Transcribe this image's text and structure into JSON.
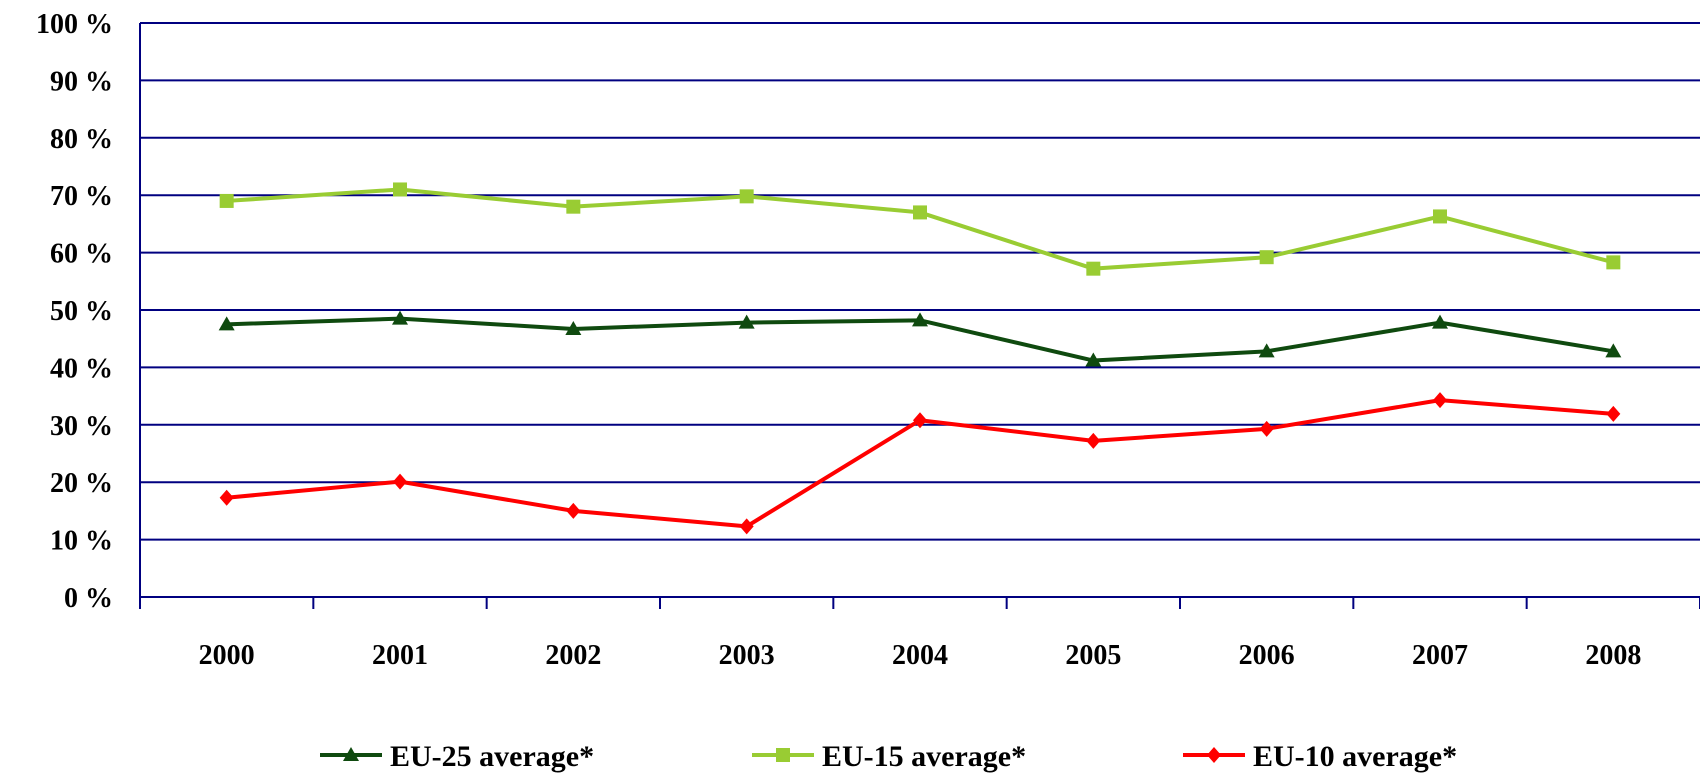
{
  "chart_data": {
    "type": "line",
    "categories": [
      "2000",
      "2001",
      "2002",
      "2003",
      "2004",
      "2005",
      "2006",
      "2007",
      "2008"
    ],
    "y_tick_labels": [
      "0 %",
      "10 %",
      "20 %",
      "30 %",
      "40 %",
      "50 %",
      "60 %",
      "70 %",
      "80 %",
      "90 %",
      "100 %"
    ],
    "ylim": [
      0,
      100
    ],
    "grid": true,
    "legend_position": "bottom",
    "series": [
      {
        "name": "EU-25 average*",
        "color": "#0f4a0f",
        "marker": "triangle",
        "values": [
          47.5,
          48.5,
          46.7,
          47.8,
          48.2,
          41.2,
          42.8,
          47.8,
          42.8
        ]
      },
      {
        "name": "EU-15 average*",
        "color": "#99cc33",
        "marker": "square",
        "values": [
          69,
          71,
          68,
          69.8,
          67,
          57.2,
          59.2,
          66.3,
          58.3
        ]
      },
      {
        "name": "EU-10 average*",
        "color": "#ff0000",
        "marker": "diamond",
        "values": [
          17.3,
          20.1,
          15,
          12.3,
          30.8,
          27.2,
          29.3,
          34.3,
          31.9
        ]
      }
    ],
    "colors": {
      "gridline": "#000080",
      "axis": "#000080"
    }
  }
}
